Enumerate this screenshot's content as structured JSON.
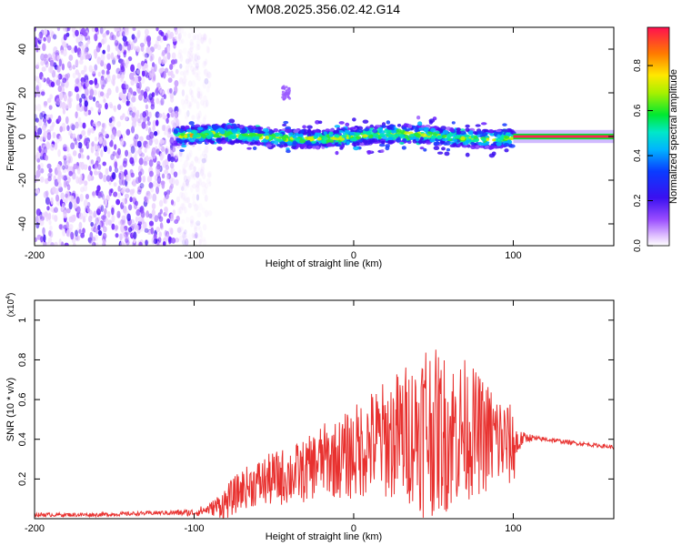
{
  "title": "YM08.2025.356.02.42.G14",
  "chart_data": [
    {
      "type": "heatmap",
      "name": "spectrogram",
      "xlabel": "Height of straight line (km)",
      "ylabel": "Frequency (Hz)",
      "xlim": [
        -200,
        163
      ],
      "ylim": [
        -50,
        50
      ],
      "xticks": [
        -200,
        -100,
        0,
        100
      ],
      "yticks": [
        -40,
        -20,
        0,
        20,
        40
      ],
      "colorbar": {
        "label": "Normalized spectral amplitude",
        "range": [
          0,
          0.97
        ],
        "ticks": [
          0.0,
          0.2,
          0.4,
          0.6,
          0.8
        ],
        "tick_labels": [
          "0.0",
          "0.2",
          "0.4",
          "0.6",
          "0.8"
        ]
      },
      "features": [
        {
          "region": "noise",
          "x": [
            -200,
            -110
          ],
          "y": [
            -50,
            50
          ],
          "level": 0.15
        },
        {
          "region": "signal-band",
          "x": [
            -112,
            100
          ],
          "y_center": 0,
          "halfwidth_hz": 4,
          "level": 0.35
        },
        {
          "region": "steady-carrier",
          "x": [
            100,
            163
          ],
          "y": 0,
          "level": 0.9
        },
        {
          "region": "spur",
          "x": [
            -45,
            -40
          ],
          "y": [
            17,
            23
          ],
          "level": 0.2
        }
      ]
    },
    {
      "type": "line",
      "name": "snr",
      "xlabel": "Height of straight line (km)",
      "ylabel": "SNR (10 * v/v)",
      "scale_note": "(x10",
      "scale_exp": "4",
      "xlim": [
        -200,
        163
      ],
      "ylim": [
        0,
        1.1
      ],
      "xticks": [
        -200,
        -100,
        0,
        100
      ],
      "yticks": [
        0.2,
        0.4,
        0.6,
        0.8,
        1
      ],
      "series": [
        {
          "name": "SNR",
          "color": "#e8312f",
          "x": [
            -200,
            -160,
            -120,
            -100,
            -90,
            -80,
            -70,
            -60,
            -50,
            -40,
            -30,
            -20,
            -10,
            0,
            10,
            20,
            30,
            40,
            45,
            50,
            60,
            70,
            80,
            90,
            100,
            105,
            110,
            115,
            120,
            140,
            163
          ],
          "y": [
            0.02,
            0.02,
            0.03,
            0.03,
            0.05,
            0.08,
            0.15,
            0.18,
            0.2,
            0.22,
            0.24,
            0.3,
            0.3,
            0.33,
            0.38,
            0.4,
            0.42,
            0.45,
            0.47,
            0.44,
            0.43,
            0.45,
            0.42,
            0.4,
            0.36,
            0.4,
            0.41,
            0.4,
            0.4,
            0.38,
            0.36
          ]
        }
      ],
      "spread_envelope": [
        0.01,
        0.01,
        0.01,
        0.02,
        0.03,
        0.09,
        0.1,
        0.12,
        0.14,
        0.15,
        0.16,
        0.18,
        0.2,
        0.24,
        0.27,
        0.3,
        0.35,
        0.38,
        0.5,
        0.42,
        0.4,
        0.36,
        0.3,
        0.26,
        0.2,
        0.04,
        0.02,
        0.015,
        0.012,
        0.01,
        0.01
      ]
    }
  ]
}
